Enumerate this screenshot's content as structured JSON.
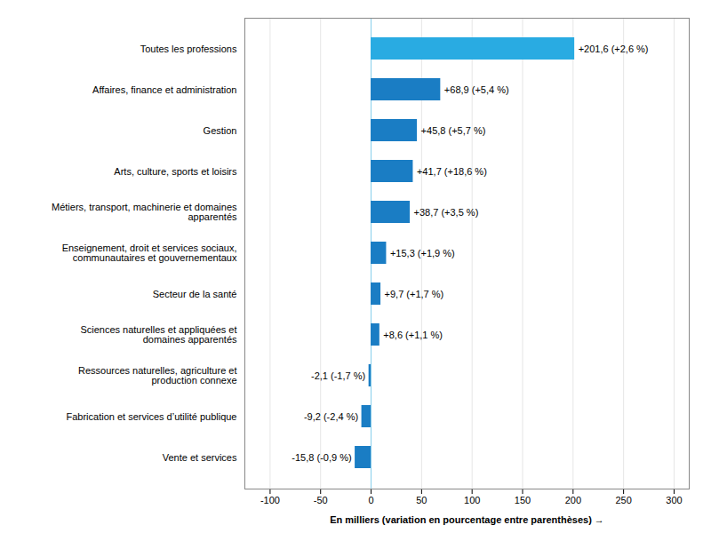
{
  "chart_data": {
    "type": "bar",
    "orientation": "horizontal",
    "categories": [
      "Toutes les professions",
      "Affaires, finance et administration",
      "Gestion",
      "Arts, culture, sports et loisirs",
      "Métiers, transport, machinerie et domaines\napparentés",
      "Enseignement, droit et services sociaux,\ncommunautaires et gouvernementaux",
      "Secteur de la santé",
      "Sciences naturelles et appliquées et\ndomaines apparentés",
      "Ressources naturelles, agriculture et\nproduction connexe",
      "Fabrication et services d’utilité publique",
      "Vente et services"
    ],
    "values": [
      201.6,
      68.9,
      45.8,
      41.7,
      38.7,
      15.3,
      9.7,
      8.6,
      -2.1,
      -9.2,
      -15.8
    ],
    "value_labels": [
      "+201,6 (+2,6 %)",
      "+68,9 (+5,4 %)",
      "+45,8 (+5,7 %)",
      "+41,7 (+18,6 %)",
      "+38,7 (+3,5 %)",
      "+15,3 (+1,9 %)",
      "+9,7 (+1,7 %)",
      "+8,6 (+1,1 %)",
      "-2,1 (-1,7 %)",
      "-9,2 (-2,4 %)",
      "-15,8 (-0,9 %)"
    ],
    "data_labels": true,
    "colors": [
      "#29ABE2",
      "#1A7DC4",
      "#1A7DC4",
      "#1A7DC4",
      "#1A7DC4",
      "#1A7DC4",
      "#1A7DC4",
      "#1A7DC4",
      "#1A7DC4",
      "#1A7DC4",
      "#1A7DC4"
    ],
    "xlabel": "En milliers (variation en pourcentage entre parenthèses)",
    "xlim": [
      -125,
      315
    ],
    "xticks": [
      -100,
      -50,
      0,
      50,
      100,
      150,
      200,
      250,
      300
    ],
    "grid": true
  }
}
